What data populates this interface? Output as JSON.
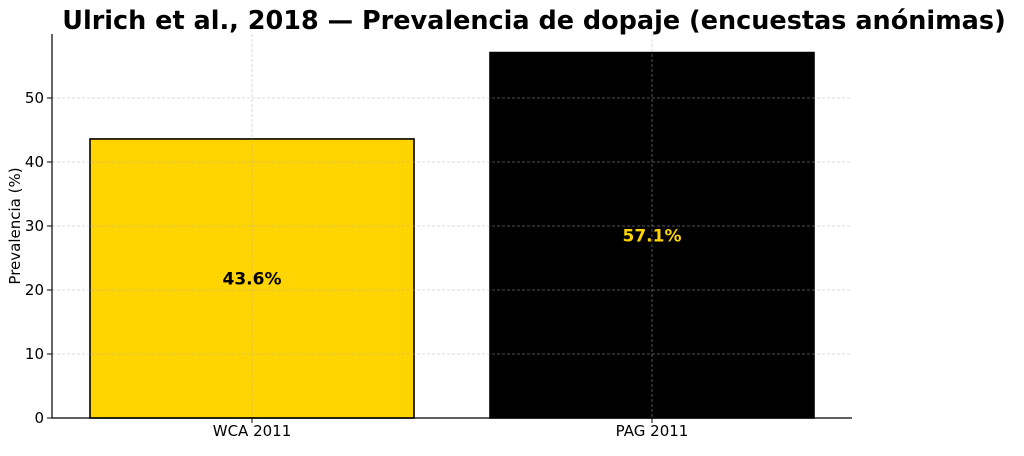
{
  "chart_data": {
    "type": "bar",
    "title": "Ulrich et al., 2018 — Prevalencia de dopaje (encuestas anónimas)",
    "xlabel": "",
    "ylabel": "Prevalencia (%)",
    "categories": [
      "WCA 2011",
      "PAG 2011"
    ],
    "values": [
      43.6,
      57.1
    ],
    "data_labels": [
      "43.6%",
      "57.1%"
    ],
    "bar_colors": [
      "#FFD400",
      "#000000"
    ],
    "label_colors": [
      "#000000",
      "#FFD400"
    ],
    "ylim": [
      0,
      60
    ],
    "yticks": [
      0,
      10,
      20,
      30,
      40,
      50
    ],
    "grid": true,
    "legend": "none"
  }
}
